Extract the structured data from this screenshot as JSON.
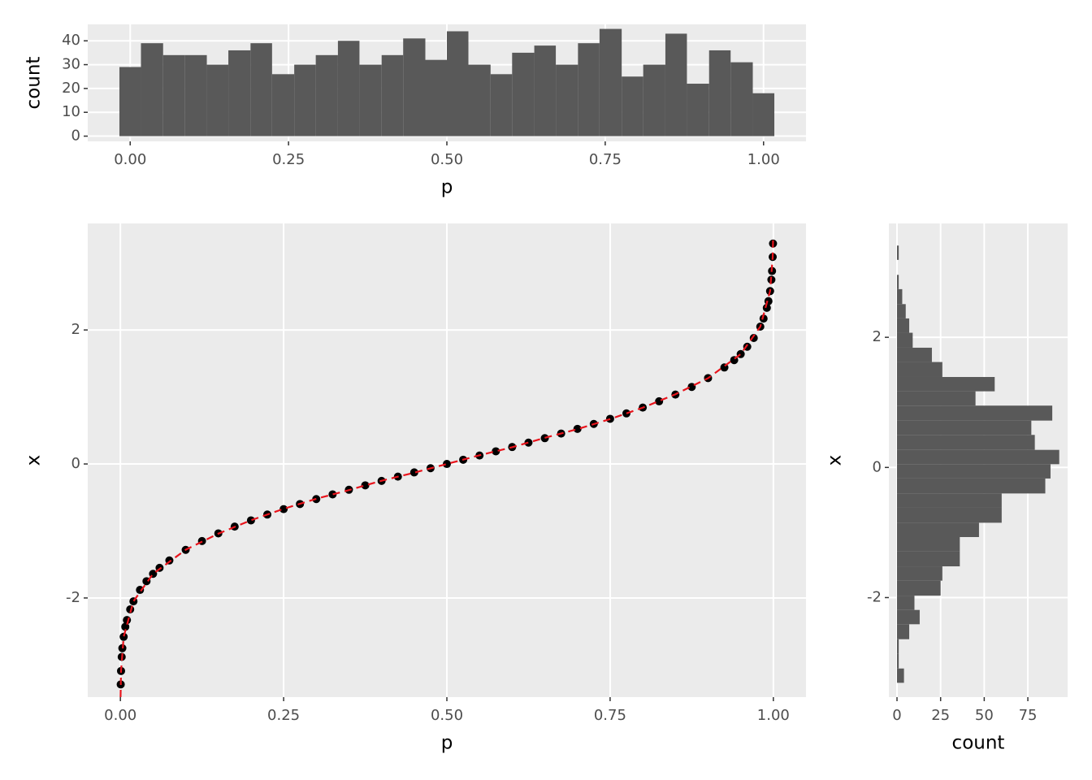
{
  "chart_data": [
    {
      "type": "histogram",
      "orientation": "vertical",
      "color": "#595959",
      "background": "#ebebeb",
      "grid": true,
      "xlabel": "p",
      "ylabel": "count",
      "bins": [
        -0.017,
        0.017,
        0.052,
        0.086,
        0.121,
        0.155,
        0.19,
        0.224,
        0.259,
        0.293,
        0.328,
        0.362,
        0.397,
        0.431,
        0.466,
        0.5,
        0.534,
        0.569,
        0.603,
        0.638,
        0.672,
        0.707,
        0.741,
        0.776,
        0.81,
        0.845,
        0.879,
        0.914,
        0.948,
        0.983,
        1.017
      ],
      "values": [
        29,
        39,
        34,
        34,
        30,
        36,
        39,
        26,
        30,
        34,
        40,
        30,
        34,
        41,
        32,
        44,
        30,
        26,
        35,
        38,
        30,
        39,
        45,
        25,
        30,
        43,
        22,
        36,
        31,
        18
      ],
      "xlim": [
        -0.067,
        1.067
      ],
      "ylim": [
        -2.2,
        46.9
      ],
      "xticks": [
        {
          "value": 0,
          "label": "0.00"
        },
        {
          "value": 0.25,
          "label": "0.25"
        },
        {
          "value": 0.5,
          "label": "0.50"
        },
        {
          "value": 0.75,
          "label": "0.75"
        },
        {
          "value": 1,
          "label": "1.00"
        }
      ],
      "yticks": [
        0,
        10,
        20,
        30,
        40
      ]
    },
    {
      "type": "scatter",
      "background": "#ebebeb",
      "grid": true,
      "xlabel": "p",
      "ylabel": "x",
      "series": [
        {
          "color": "#000000",
          "x": [
            0.0005,
            0.001,
            0.002,
            0.003,
            0.005,
            0.0075,
            0.01,
            0.015,
            0.02,
            0.03,
            0.04,
            0.05,
            0.06,
            0.075,
            0.1,
            0.125,
            0.15,
            0.175,
            0.2,
            0.225,
            0.25,
            0.275,
            0.3,
            0.325,
            0.35,
            0.375,
            0.4,
            0.425,
            0.45,
            0.475,
            0.5,
            0.525,
            0.55,
            0.575,
            0.6,
            0.625,
            0.65,
            0.675,
            0.7,
            0.725,
            0.75,
            0.775,
            0.8,
            0.825,
            0.85,
            0.875,
            0.9,
            0.925,
            0.94,
            0.95,
            0.96,
            0.97,
            0.98,
            0.985,
            0.99,
            0.9925,
            0.995,
            0.997,
            0.998,
            0.999,
            0.9995
          ],
          "values": [
            -3.29,
            -3.09,
            -2.88,
            -2.75,
            -2.58,
            -2.43,
            -2.33,
            -2.17,
            -2.05,
            -1.88,
            -1.75,
            -1.64,
            -1.55,
            -1.44,
            -1.282,
            -1.15,
            -1.036,
            -0.935,
            -0.842,
            -0.755,
            -0.674,
            -0.598,
            -0.524,
            -0.454,
            -0.385,
            -0.319,
            -0.253,
            -0.189,
            -0.126,
            -0.063,
            0,
            0.063,
            0.126,
            0.189,
            0.253,
            0.319,
            0.385,
            0.454,
            0.524,
            0.598,
            0.674,
            0.755,
            0.842,
            0.935,
            1.036,
            1.15,
            1.282,
            1.44,
            1.55,
            1.64,
            1.75,
            1.88,
            2.05,
            2.17,
            2.33,
            2.43,
            2.58,
            2.75,
            2.88,
            3.09,
            3.29
          ]
        },
        {
          "type": "line",
          "color": "#e8141c",
          "dashed": true,
          "x": [
            0.00025,
            0.001,
            0.005,
            0.02,
            0.05,
            0.1,
            0.15,
            0.2,
            0.25,
            0.3,
            0.35,
            0.4,
            0.45,
            0.5,
            0.55,
            0.6,
            0.65,
            0.7,
            0.75,
            0.8,
            0.85,
            0.9,
            0.95,
            0.98,
            0.995,
            0.999,
            0.9996
          ],
          "values": [
            -3.48,
            -3.09,
            -2.58,
            -2.05,
            -1.64,
            -1.28,
            -1.04,
            -0.84,
            -0.67,
            -0.52,
            -0.39,
            -0.25,
            -0.13,
            0,
            0.13,
            0.25,
            0.39,
            0.52,
            0.67,
            0.84,
            1.04,
            1.28,
            1.64,
            2.05,
            2.58,
            3.09,
            3.35
          ]
        }
      ],
      "xlim": [
        -0.05,
        1.05
      ],
      "ylim": [
        -3.48,
        3.59
      ],
      "xticks": [
        {
          "value": 0,
          "label": "0.00"
        },
        {
          "value": 0.25,
          "label": "0.25"
        },
        {
          "value": 0.5,
          "label": "0.50"
        },
        {
          "value": 0.75,
          "label": "0.75"
        },
        {
          "value": 1,
          "label": "1.00"
        }
      ],
      "yticks": [
        -2,
        0,
        2
      ]
    },
    {
      "type": "histogram",
      "orientation": "horizontal",
      "color": "#595959",
      "background": "#ebebeb",
      "grid": true,
      "xlabel": "count",
      "ylabel": "x",
      "bins": [
        -3.31,
        -3.09,
        -2.86,
        -2.64,
        -2.41,
        -2.19,
        -1.97,
        -1.74,
        -1.52,
        -1.29,
        -1.07,
        -0.85,
        -0.62,
        -0.4,
        -0.17,
        0.05,
        0.27,
        0.5,
        0.72,
        0.95,
        1.17,
        1.39,
        1.62,
        1.84,
        2.07,
        2.29,
        2.51,
        2.74,
        2.96,
        3.19,
        3.41
      ],
      "values": [
        4,
        1,
        1,
        7,
        13,
        10,
        25,
        26,
        36,
        36,
        47,
        60,
        60,
        85,
        88,
        93,
        79,
        77,
        89,
        45,
        56,
        26,
        20,
        9,
        7,
        5,
        3,
        1,
        0,
        1
      ],
      "xlim": [
        -4.66,
        97.8
      ],
      "ylim": [
        -3.53,
        3.75
      ],
      "xticks": [
        0,
        25,
        50,
        75
      ],
      "yticks": [
        -2,
        0,
        2
      ]
    }
  ]
}
